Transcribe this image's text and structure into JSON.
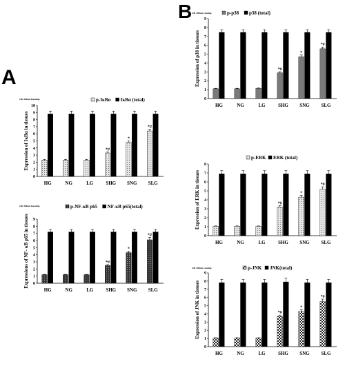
{
  "panels": [
    {
      "letter": "A"
    },
    {
      "letter": "B"
    }
  ],
  "colors": {
    "black": "#000000",
    "dark_gray": "#555555",
    "light_gray": "#bfbfbf",
    "white": "#ffffff"
  },
  "chart_data": [
    {
      "type": "bar",
      "od_label": "OD 490nm Reading",
      "ylabel": "Expression of IκBα in tissues",
      "ylim": [
        0,
        10
      ],
      "yticks": [
        0,
        1,
        2,
        3,
        4,
        5,
        6,
        7,
        8,
        9,
        10
      ],
      "categories": [
        "HG",
        "NG",
        "LG",
        "SHG",
        "SNG",
        "SLG"
      ],
      "series": [
        {
          "name": "p-IκBα",
          "pattern": "light-dotted",
          "values": [
            2.3,
            2.3,
            2.3,
            3.3,
            4.8,
            6.4
          ],
          "errors": [
            0.1,
            0.1,
            0.1,
            0.15,
            0.2,
            0.25
          ]
        },
        {
          "name": "IκBα (total)",
          "pattern": "black",
          "values": [
            8.8,
            8.8,
            8.8,
            8.8,
            8.8,
            8.8
          ],
          "errors": [
            0.4,
            0.4,
            0.4,
            0.4,
            0.4,
            0.4
          ]
        }
      ],
      "annotations": [
        "",
        "",
        "",
        "*#",
        "*",
        "*#"
      ],
      "legend_position": "top-right"
    },
    {
      "type": "bar",
      "od_label": "OD 490nm Reading",
      "ylabel": "Expressions of NF- κB p65 in tissues",
      "ylim": [
        0,
        9
      ],
      "yticks": [
        0,
        1,
        2,
        3,
        4,
        5,
        6,
        7,
        8,
        9
      ],
      "categories": [
        "HG",
        "NG",
        "LG",
        "SHG",
        "SNG",
        "SLG"
      ],
      "series": [
        {
          "name": "p-NF-κB p65",
          "pattern": "dark-cross",
          "values": [
            1.2,
            1.2,
            1.2,
            2.5,
            4.3,
            6.1
          ],
          "errors": [
            0.05,
            0.05,
            0.05,
            0.12,
            0.2,
            0.35
          ]
        },
        {
          "name": "NF-κB p65(total)",
          "pattern": "black",
          "values": [
            7.2,
            7.2,
            7.2,
            7.2,
            7.2,
            7.2
          ],
          "errors": [
            0.35,
            0.35,
            0.35,
            0.35,
            0.35,
            0.35
          ]
        }
      ],
      "annotations": [
        "",
        "",
        "",
        "*#",
        "*",
        "*#"
      ],
      "legend_position": "top-right"
    },
    {
      "type": "bar",
      "od_label": "OD 490nm reading",
      "ylabel": "Expression of p38 in tissues",
      "ylim": [
        0,
        9
      ],
      "yticks": [
        0,
        1,
        2,
        3,
        4,
        5,
        6,
        7,
        8,
        9
      ],
      "categories": [
        "HG",
        "NG",
        "LG",
        "SHG",
        "SNG",
        "SLG"
      ],
      "series": [
        {
          "name": "p-p38",
          "pattern": "gray",
          "values": [
            1.1,
            1.1,
            1.15,
            2.9,
            4.7,
            5.6
          ],
          "errors": [
            0.05,
            0.05,
            0.05,
            0.12,
            0.2,
            0.2
          ]
        },
        {
          "name": "p38 (total)",
          "pattern": "black",
          "values": [
            7.45,
            7.45,
            7.45,
            7.45,
            7.45,
            7.45
          ],
          "errors": [
            0.3,
            0.3,
            0.3,
            0.3,
            0.3,
            0.3
          ]
        }
      ],
      "annotations": [
        "",
        "",
        "",
        "*#",
        "*",
        "*#"
      ],
      "legend_position": "top"
    },
    {
      "type": "bar",
      "od_label": "",
      "ylabel": "Expression of ERK in tissues",
      "ylim": [
        0,
        8
      ],
      "yticks": [
        0,
        1,
        2,
        3,
        4,
        5,
        6,
        7,
        8
      ],
      "categories": [
        "HG",
        "NG",
        "LG",
        "SHG",
        "SNG",
        "SLG"
      ],
      "series": [
        {
          "name": "p-ERK",
          "pattern": "light-dotted",
          "values": [
            1.05,
            1.05,
            1.05,
            3.2,
            4.3,
            5.2
          ],
          "errors": [
            0.04,
            0.04,
            0.04,
            0.15,
            0.2,
            0.25
          ]
        },
        {
          "name": "ERK (total)",
          "pattern": "black",
          "values": [
            6.9,
            6.9,
            6.9,
            6.9,
            6.9,
            6.9
          ],
          "errors": [
            0.35,
            0.35,
            0.35,
            0.35,
            0.35,
            0.35
          ]
        }
      ],
      "annotations": [
        "",
        "",
        "",
        "*#",
        "*",
        "*#"
      ],
      "legend_position": "top"
    },
    {
      "type": "bar",
      "od_label": "OD 490nm reading",
      "ylabel": "Expression of JNK in tissues",
      "ylim": [
        0,
        9
      ],
      "yticks": [
        0,
        1,
        2,
        3,
        4,
        5,
        6,
        7,
        8,
        9
      ],
      "categories": [
        "HG",
        "NG",
        "LG",
        "SHG",
        "SNG",
        "SLG"
      ],
      "series": [
        {
          "name": "p-JNK",
          "pattern": "check",
          "values": [
            1.05,
            1.05,
            1.05,
            3.7,
            4.3,
            5.5
          ],
          "errors": [
            0.04,
            0.04,
            0.04,
            0.15,
            0.2,
            0.3
          ]
        },
        {
          "name": "JNK(total)",
          "pattern": "black",
          "values": [
            7.8,
            7.8,
            7.8,
            7.9,
            7.8,
            7.8
          ],
          "errors": [
            0.4,
            0.4,
            0.4,
            0.45,
            0.4,
            0.4
          ]
        }
      ],
      "annotations": [
        "",
        "",
        "",
        "*#",
        "*",
        "*#"
      ],
      "legend_position": "top"
    }
  ]
}
